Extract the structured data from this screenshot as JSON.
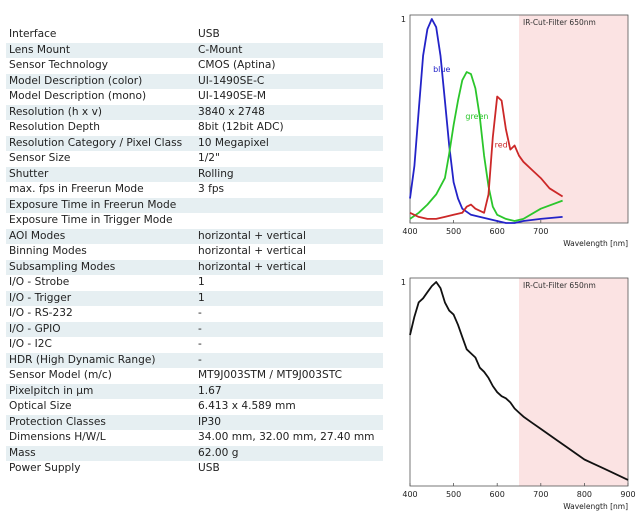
{
  "specs": {
    "rows": [
      {
        "label": "Interface",
        "value": "USB"
      },
      {
        "label": "Lens Mount",
        "value": "C-Mount"
      },
      {
        "label": "Sensor Technology",
        "value": "CMOS (Aptina)"
      },
      {
        "label": "Model Description (color)",
        "value": "UI-1490SE-C"
      },
      {
        "label": "Model Description (mono)",
        "value": "UI-1490SE-M"
      },
      {
        "label": "Resolution (h x v)",
        "value": "3840 x 2748"
      },
      {
        "label": "Resolution Depth",
        "value": "8bit (12bit ADC)"
      },
      {
        "label": "Resolution Category / Pixel Class",
        "value": "10 Megapixel"
      },
      {
        "label": "Sensor Size",
        "value": "1/2\""
      },
      {
        "label": "Shutter",
        "value": "Rolling"
      },
      {
        "label": "max. fps in Freerun Mode",
        "value": "3 fps"
      },
      {
        "label": "Exposure Time in Freerun Mode",
        "value": ""
      },
      {
        "label": "Exposure Time in Trigger Mode",
        "value": ""
      },
      {
        "label": "AOI Modes",
        "value": "horizontal + vertical"
      },
      {
        "label": "Binning Modes",
        "value": "horizontal + vertical"
      },
      {
        "label": "Subsampling Modes",
        "value": "horizontal + vertical"
      },
      {
        "label": "I/O - Strobe",
        "value": "1"
      },
      {
        "label": "I/O - Trigger",
        "value": "1"
      },
      {
        "label": "I/O - RS-232",
        "value": "-"
      },
      {
        "label": "I/O - GPIO",
        "value": "-"
      },
      {
        "label": "I/O - I2C",
        "value": "-"
      },
      {
        "label": "HDR (High Dynamic Range)",
        "value": "-"
      },
      {
        "label": "Sensor Model (m/c)",
        "value": "MT9J003STM / MT9J003STC"
      },
      {
        "label": "Pixelpitch in µm",
        "value": "1.67"
      },
      {
        "label": "Optical Size",
        "value": "6.413 x 4.589 mm"
      },
      {
        "label": "Protection Classes",
        "value": "IP30"
      },
      {
        "label": "Dimensions H/W/L",
        "value": "34.00 mm, 32.00 mm, 27.40 mm"
      },
      {
        "label": "Mass",
        "value": "62.00 g"
      },
      {
        "label": "Power Supply",
        "value": "USB"
      }
    ]
  },
  "chart_data": [
    {
      "type": "line",
      "title": "",
      "xlabel": "Wavelength [nm]",
      "ylabel": "",
      "xlim": [
        400,
        900
      ],
      "ylim": [
        0,
        1
      ],
      "x_ticks": [
        "400",
        "500",
        "600",
        "700"
      ],
      "y_ticks": [
        "1"
      ],
      "annotation": {
        "text": "IR-Cut-Filter 650nm",
        "from_x": 650,
        "to_x": 900,
        "color": "#fbe3e3"
      },
      "series": [
        {
          "name": "blue",
          "color": "#2323c8",
          "label_at": [
            453,
            0.74
          ],
          "points": [
            [
              400,
              0.12
            ],
            [
              410,
              0.28
            ],
            [
              420,
              0.55
            ],
            [
              430,
              0.82
            ],
            [
              440,
              0.95
            ],
            [
              450,
              1.0
            ],
            [
              460,
              0.96
            ],
            [
              470,
              0.82
            ],
            [
              480,
              0.6
            ],
            [
              490,
              0.38
            ],
            [
              500,
              0.2
            ],
            [
              510,
              0.12
            ],
            [
              520,
              0.07
            ],
            [
              540,
              0.04
            ],
            [
              560,
              0.03
            ],
            [
              600,
              0.01
            ],
            [
              620,
              0.0
            ],
            [
              640,
              0.0
            ],
            [
              660,
              0.01
            ],
            [
              700,
              0.02
            ],
            [
              750,
              0.03
            ]
          ]
        },
        {
          "name": "green",
          "color": "#2bc62b",
          "label_at": [
            527,
            0.51
          ],
          "points": [
            [
              400,
              0.02
            ],
            [
              420,
              0.05
            ],
            [
              440,
              0.09
            ],
            [
              460,
              0.14
            ],
            [
              480,
              0.22
            ],
            [
              490,
              0.34
            ],
            [
              500,
              0.48
            ],
            [
              510,
              0.6
            ],
            [
              520,
              0.7
            ],
            [
              530,
              0.74
            ],
            [
              540,
              0.73
            ],
            [
              550,
              0.66
            ],
            [
              560,
              0.52
            ],
            [
              570,
              0.33
            ],
            [
              580,
              0.18
            ],
            [
              590,
              0.08
            ],
            [
              600,
              0.04
            ],
            [
              620,
              0.02
            ],
            [
              640,
              0.01
            ],
            [
              660,
              0.02
            ],
            [
              700,
              0.07
            ],
            [
              750,
              0.11
            ]
          ]
        },
        {
          "name": "red",
          "color": "#cc2828",
          "label_at": [
            594,
            0.37
          ],
          "points": [
            [
              400,
              0.05
            ],
            [
              420,
              0.03
            ],
            [
              440,
              0.02
            ],
            [
              460,
              0.02
            ],
            [
              480,
              0.03
            ],
            [
              500,
              0.04
            ],
            [
              520,
              0.05
            ],
            [
              530,
              0.08
            ],
            [
              540,
              0.09
            ],
            [
              550,
              0.07
            ],
            [
              570,
              0.05
            ],
            [
              580,
              0.14
            ],
            [
              590,
              0.42
            ],
            [
              600,
              0.62
            ],
            [
              610,
              0.6
            ],
            [
              620,
              0.46
            ],
            [
              630,
              0.36
            ],
            [
              640,
              0.38
            ],
            [
              650,
              0.33
            ],
            [
              660,
              0.3
            ],
            [
              680,
              0.26
            ],
            [
              700,
              0.22
            ],
            [
              720,
              0.17
            ],
            [
              750,
              0.13
            ]
          ]
        }
      ]
    },
    {
      "type": "line",
      "title": "",
      "xlabel": "Wavelength [nm]",
      "ylabel": "",
      "xlim": [
        400,
        900
      ],
      "ylim": [
        0,
        1
      ],
      "x_ticks": [
        "400",
        "500",
        "600",
        "700",
        "800",
        "900"
      ],
      "y_ticks": [
        "1"
      ],
      "annotation": {
        "text": "IR-Cut-Filter 650nm",
        "from_x": 650,
        "to_x": 900,
        "color": "#fbe3e3"
      },
      "series": [
        {
          "name": "",
          "color": "#111111",
          "label_at": null,
          "points": [
            [
              400,
              0.74
            ],
            [
              410,
              0.83
            ],
            [
              420,
              0.9
            ],
            [
              430,
              0.92
            ],
            [
              440,
              0.95
            ],
            [
              450,
              0.98
            ],
            [
              460,
              1.0
            ],
            [
              470,
              0.97
            ],
            [
              480,
              0.9
            ],
            [
              490,
              0.86
            ],
            [
              500,
              0.84
            ],
            [
              510,
              0.79
            ],
            [
              520,
              0.73
            ],
            [
              530,
              0.67
            ],
            [
              540,
              0.65
            ],
            [
              550,
              0.63
            ],
            [
              560,
              0.58
            ],
            [
              570,
              0.56
            ],
            [
              580,
              0.53
            ],
            [
              590,
              0.49
            ],
            [
              600,
              0.46
            ],
            [
              610,
              0.44
            ],
            [
              620,
              0.43
            ],
            [
              630,
              0.41
            ],
            [
              640,
              0.38
            ],
            [
              650,
              0.36
            ],
            [
              660,
              0.34
            ],
            [
              680,
              0.31
            ],
            [
              700,
              0.28
            ],
            [
              720,
              0.25
            ],
            [
              740,
              0.22
            ],
            [
              760,
              0.19
            ],
            [
              780,
              0.16
            ],
            [
              800,
              0.13
            ],
            [
              820,
              0.11
            ],
            [
              840,
              0.09
            ],
            [
              860,
              0.07
            ],
            [
              880,
              0.05
            ],
            [
              900,
              0.03
            ]
          ]
        }
      ]
    }
  ]
}
